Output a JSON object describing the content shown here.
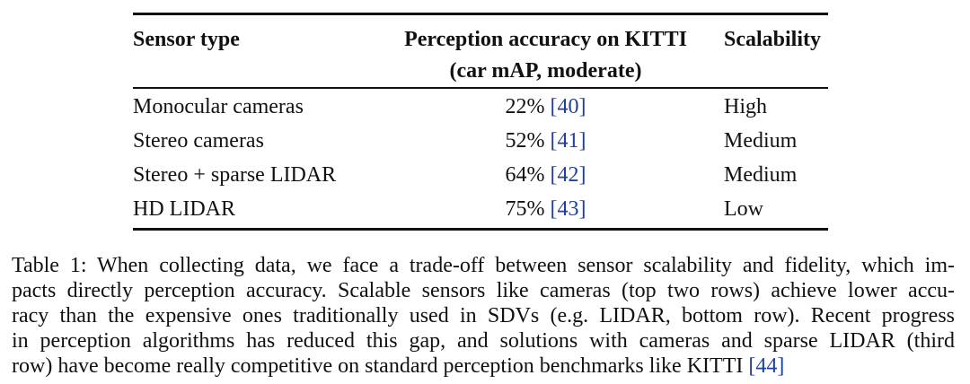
{
  "table": {
    "headers": {
      "sensor_type": "Sensor type",
      "accuracy_line1": "Perception accuracy on KITTI",
      "accuracy_line2": "(car mAP, moderate)",
      "scalability": "Scalability"
    },
    "rows": [
      {
        "sensor": "Monocular cameras",
        "accuracy": "22%",
        "ref": "40",
        "scalability": "High"
      },
      {
        "sensor": "Stereo cameras",
        "accuracy": "52%",
        "ref": "41",
        "scalability": "Medium"
      },
      {
        "sensor": "Stereo + sparse LIDAR",
        "accuracy": "64%",
        "ref": "42",
        "scalability": "Medium"
      },
      {
        "sensor": "HD LIDAR",
        "accuracy": "75%",
        "ref": "43",
        "scalability": "Low"
      }
    ]
  },
  "caption": {
    "lines": [
      "Table 1: When collecting data, we face a trade-off between sensor scalability and fidelity, which im-",
      "pacts directly perception accuracy. Scalable sensors like cameras (top two rows) achieve lower accu-",
      "racy than the expensive ones traditionally used in SDVs (e.g. LIDAR, bottom row). Recent progress",
      "in perception algorithms has reduced this gap, and solutions with cameras and sparse LIDAR (third",
      "row) have become really competitive on standard perception benchmarks like KITTI"
    ],
    "final_ref": "44"
  },
  "colors": {
    "citation": "#1f3f9e",
    "text": "#111111"
  }
}
